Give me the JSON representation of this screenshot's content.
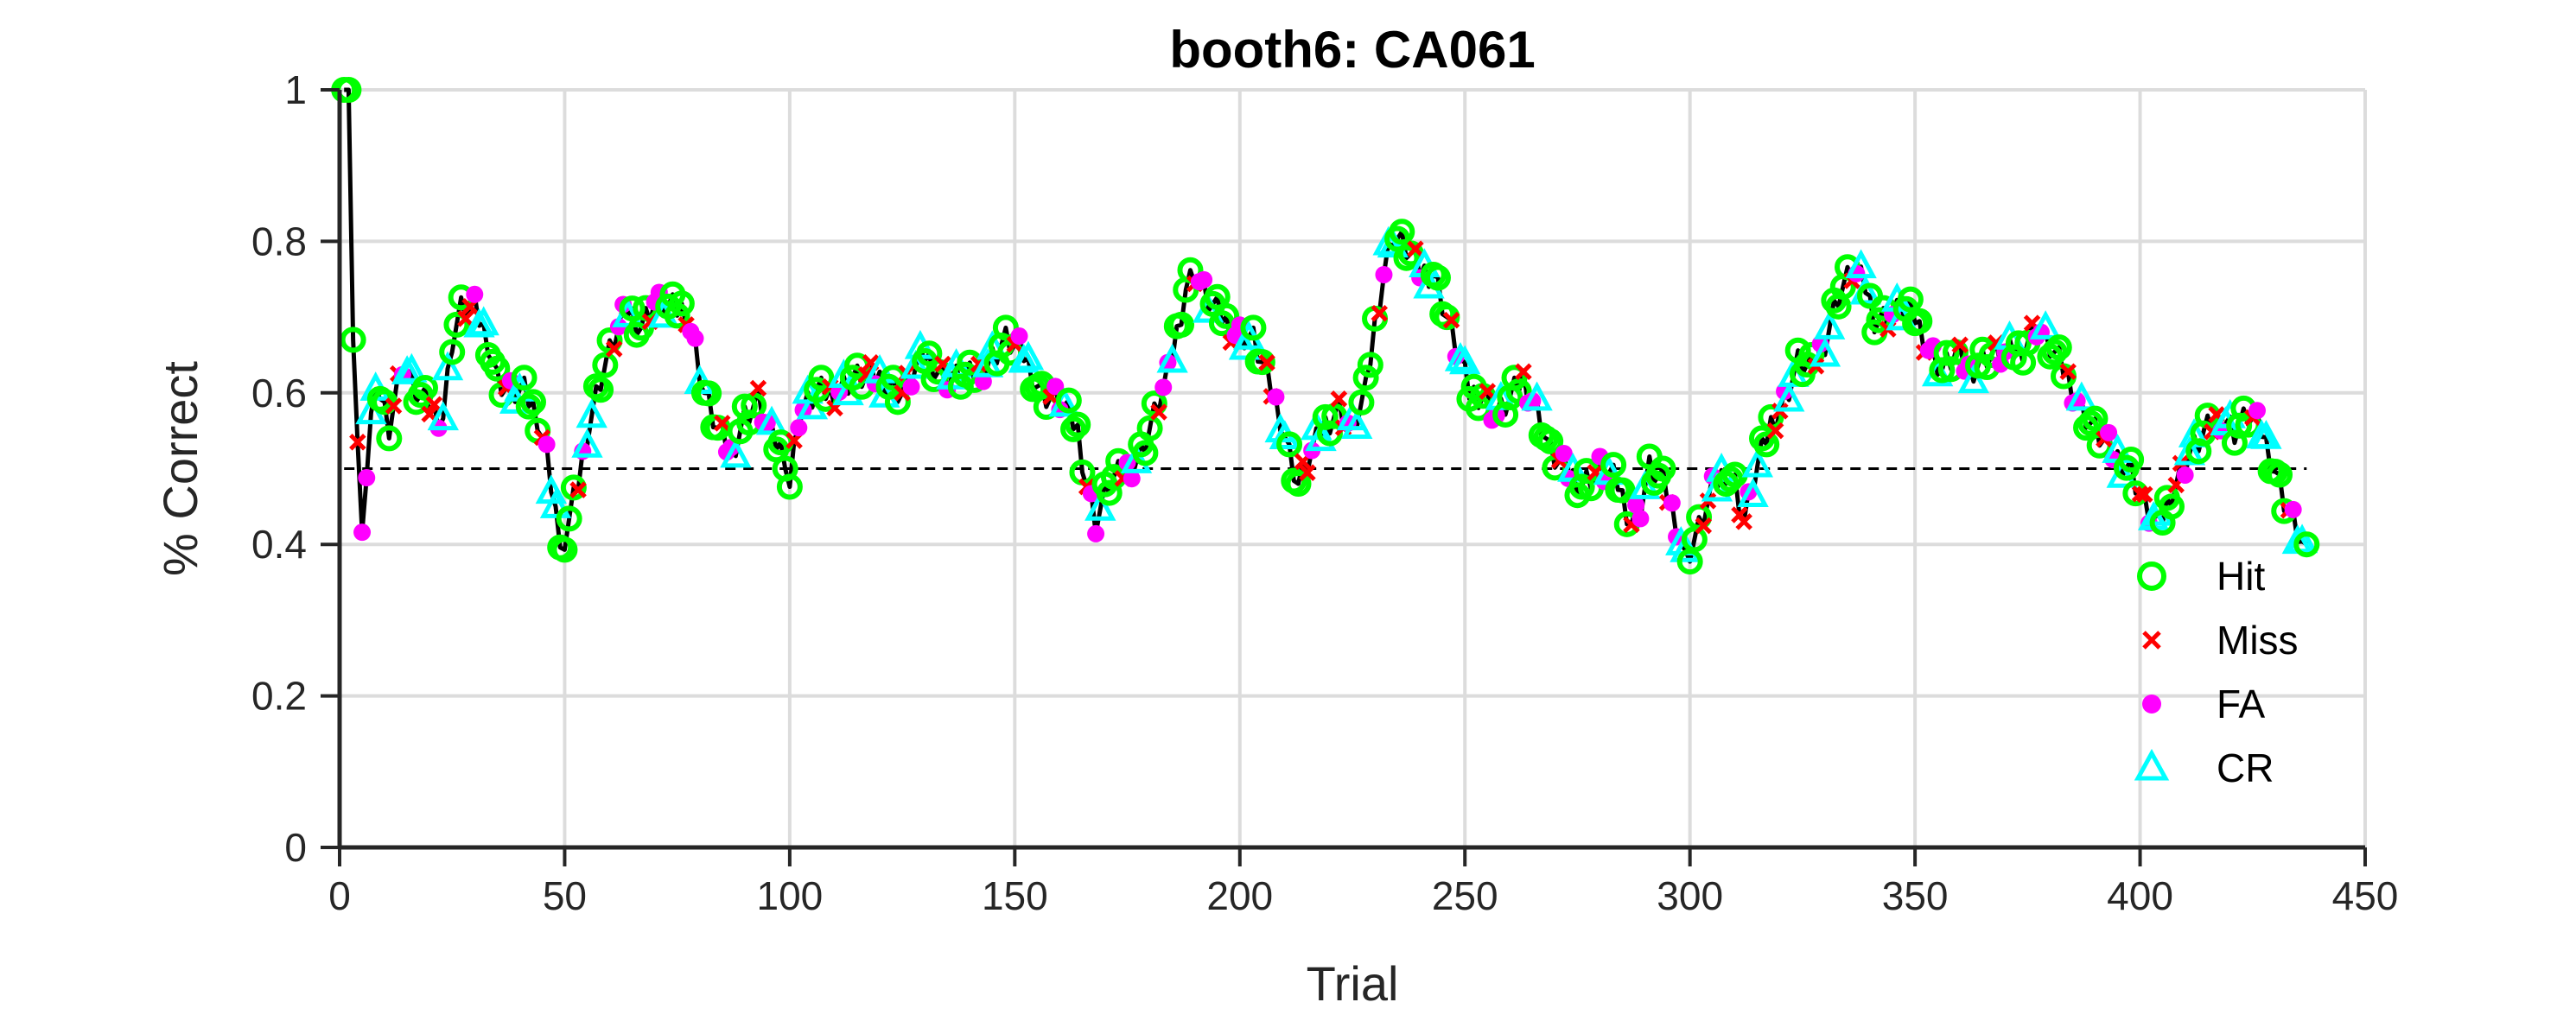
{
  "chart_data": {
    "type": "line",
    "title": "booth6: CA061",
    "xlabel": "Trial",
    "ylabel": "% Correct",
    "xlim": [
      0,
      450
    ],
    "ylim": [
      0,
      1
    ],
    "xticks": [
      0,
      50,
      100,
      150,
      200,
      250,
      300,
      350,
      400,
      450
    ],
    "yticks": [
      0,
      0.2,
      0.4,
      0.6,
      0.8,
      1
    ],
    "xtick_labels": [
      "0",
      "50",
      "100",
      "150",
      "200",
      "250",
      "300",
      "350",
      "400",
      "450"
    ],
    "ytick_labels": [
      "0",
      "0.2",
      "0.4",
      "0.6",
      "0.8",
      "1"
    ],
    "grid": true,
    "reference_line": {
      "y": 0.5,
      "style": "dashed"
    },
    "legend": {
      "position": "bottom-right",
      "entries": [
        {
          "label": "Hit",
          "marker": "circle",
          "color": "#00ff00"
        },
        {
          "label": "Miss",
          "marker": "x",
          "color": "#ff0000"
        },
        {
          "label": "FA",
          "marker": "dot",
          "color": "#ff00ff"
        },
        {
          "label": "CR",
          "marker": "triangle",
          "color": "#00ffff"
        }
      ]
    },
    "line_color": "#000000",
    "keypoints": [
      [
        1,
        1.0
      ],
      [
        2,
        1.0
      ],
      [
        3,
        0.67
      ],
      [
        5,
        0.4
      ],
      [
        6,
        0.5
      ],
      [
        7,
        0.57
      ],
      [
        9,
        0.6
      ],
      [
        11,
        0.56
      ],
      [
        14,
        0.64
      ],
      [
        17,
        0.6
      ],
      [
        20,
        0.58
      ],
      [
        23,
        0.57
      ],
      [
        25,
        0.67
      ],
      [
        27,
        0.71
      ],
      [
        30,
        0.71
      ],
      [
        33,
        0.67
      ],
      [
        35,
        0.62
      ],
      [
        38,
        0.6
      ],
      [
        41,
        0.6
      ],
      [
        44,
        0.57
      ],
      [
        46,
        0.52
      ],
      [
        48,
        0.45
      ],
      [
        49,
        0.38
      ],
      [
        51,
        0.43
      ],
      [
        53,
        0.48
      ],
      [
        55,
        0.55
      ],
      [
        58,
        0.62
      ],
      [
        61,
        0.67
      ],
      [
        64,
        0.71
      ],
      [
        67,
        0.69
      ],
      [
        70,
        0.72
      ],
      [
        73,
        0.71
      ],
      [
        77,
        0.71
      ],
      [
        79,
        0.66
      ],
      [
        81,
        0.6
      ],
      [
        84,
        0.55
      ],
      [
        87,
        0.52
      ],
      [
        90,
        0.57
      ],
      [
        93,
        0.59
      ],
      [
        96,
        0.54
      ],
      [
        99,
        0.52
      ],
      [
        100,
        0.48
      ],
      [
        102,
        0.57
      ],
      [
        106,
        0.6
      ],
      [
        110,
        0.6
      ],
      [
        114,
        0.62
      ],
      [
        120,
        0.62
      ],
      [
        125,
        0.6
      ],
      [
        130,
        0.65
      ],
      [
        135,
        0.62
      ],
      [
        140,
        0.62
      ],
      [
        144,
        0.64
      ],
      [
        148,
        0.67
      ],
      [
        152,
        0.65
      ],
      [
        156,
        0.6
      ],
      [
        160,
        0.59
      ],
      [
        164,
        0.55
      ],
      [
        166,
        0.48
      ],
      [
        168,
        0.43
      ],
      [
        171,
        0.48
      ],
      [
        175,
        0.5
      ],
      [
        178,
        0.52
      ],
      [
        181,
        0.57
      ],
      [
        184,
        0.62
      ],
      [
        186,
        0.68
      ],
      [
        188,
        0.74
      ],
      [
        190,
        0.76
      ],
      [
        193,
        0.72
      ],
      [
        196,
        0.7
      ],
      [
        199,
        0.68
      ],
      [
        203,
        0.67
      ],
      [
        206,
        0.62
      ],
      [
        209,
        0.57
      ],
      [
        211,
        0.52
      ],
      [
        213,
        0.48
      ],
      [
        216,
        0.52
      ],
      [
        219,
        0.56
      ],
      [
        222,
        0.58
      ],
      [
        225,
        0.55
      ],
      [
        228,
        0.6
      ],
      [
        230,
        0.69
      ],
      [
        232,
        0.76
      ],
      [
        234,
        0.81
      ],
      [
        237,
        0.79
      ],
      [
        240,
        0.76
      ],
      [
        243,
        0.76
      ],
      [
        246,
        0.7
      ],
      [
        248,
        0.66
      ],
      [
        251,
        0.6
      ],
      [
        254,
        0.6
      ],
      [
        257,
        0.57
      ],
      [
        260,
        0.59
      ],
      [
        263,
        0.62
      ],
      [
        266,
        0.58
      ],
      [
        269,
        0.52
      ],
      [
        272,
        0.5
      ],
      [
        276,
        0.48
      ],
      [
        280,
        0.5
      ],
      [
        284,
        0.48
      ],
      [
        287,
        0.43
      ],
      [
        289,
        0.45
      ],
      [
        291,
        0.5
      ],
      [
        294,
        0.48
      ],
      [
        297,
        0.43
      ],
      [
        299,
        0.38
      ],
      [
        302,
        0.42
      ],
      [
        305,
        0.47
      ],
      [
        308,
        0.5
      ],
      [
        310,
        0.48
      ],
      [
        312,
        0.43
      ],
      [
        315,
        0.5
      ],
      [
        318,
        0.56
      ],
      [
        321,
        0.59
      ],
      [
        324,
        0.64
      ],
      [
        327,
        0.63
      ],
      [
        330,
        0.67
      ],
      [
        333,
        0.73
      ],
      [
        336,
        0.76
      ],
      [
        339,
        0.74
      ],
      [
        341,
        0.7
      ],
      [
        344,
        0.7
      ],
      [
        347,
        0.71
      ],
      [
        350,
        0.7
      ],
      [
        353,
        0.66
      ],
      [
        356,
        0.63
      ],
      [
        359,
        0.65
      ],
      [
        362,
        0.63
      ],
      [
        366,
        0.65
      ],
      [
        370,
        0.65
      ],
      [
        374,
        0.66
      ],
      [
        377,
        0.69
      ],
      [
        380,
        0.66
      ],
      [
        384,
        0.62
      ],
      [
        387,
        0.58
      ],
      [
        390,
        0.55
      ],
      [
        394,
        0.52
      ],
      [
        398,
        0.5
      ],
      [
        401,
        0.45
      ],
      [
        404,
        0.42
      ],
      [
        407,
        0.47
      ],
      [
        411,
        0.52
      ],
      [
        415,
        0.55
      ],
      [
        418,
        0.57
      ],
      [
        421,
        0.55
      ],
      [
        424,
        0.57
      ],
      [
        427,
        0.55
      ],
      [
        430,
        0.5
      ],
      [
        432,
        0.46
      ],
      [
        434,
        0.43
      ],
      [
        436,
        0.4
      ],
      [
        437,
        0.38
      ]
    ],
    "marker_pattern": "irregular mix of Hit (green circle), Miss (red x), FA (magenta dot) and CR (cyan triangle) markers placed on every trial of the line",
    "n_trials": 437
  }
}
